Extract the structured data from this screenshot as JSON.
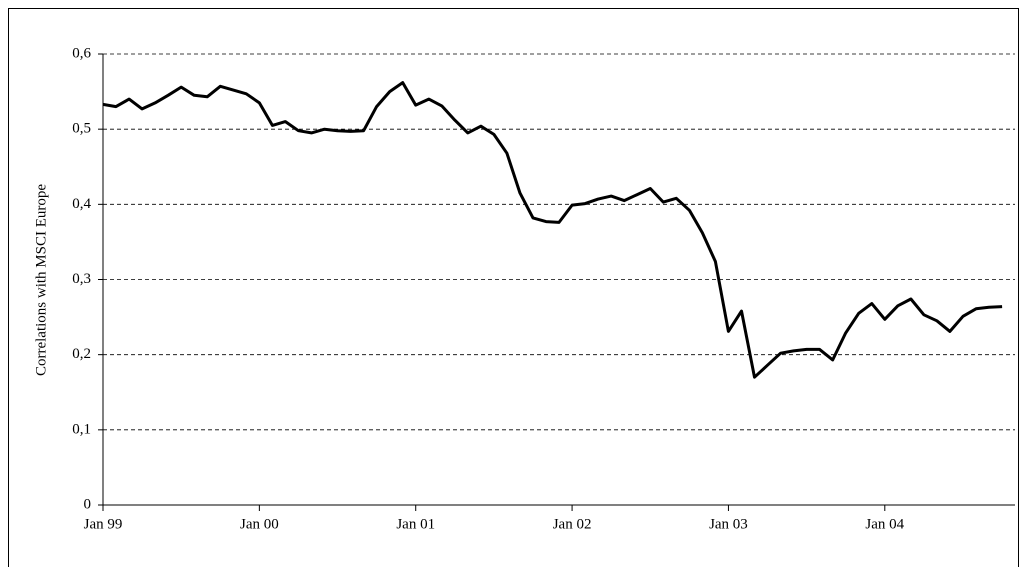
{
  "chart_data": {
    "type": "line",
    "y_label": "Correlations with MSCI Europe",
    "categories": [
      "Jan 99",
      null,
      null,
      null,
      null,
      null,
      null,
      null,
      null,
      null,
      null,
      null,
      "Jan 00",
      null,
      null,
      null,
      null,
      null,
      null,
      null,
      null,
      null,
      null,
      null,
      "Jan 01",
      null,
      null,
      null,
      null,
      null,
      null,
      null,
      null,
      null,
      null,
      null,
      "Jan 02",
      null,
      null,
      null,
      null,
      null,
      null,
      null,
      null,
      null,
      null,
      null,
      "Jan 03",
      null,
      null,
      null,
      null,
      null,
      null,
      null,
      null,
      null,
      null,
      null,
      "Jan 04",
      null,
      null,
      null,
      null,
      null,
      null,
      null,
      null,
      null
    ],
    "series": [
      {
        "name": "Correlations with MSCI Europe",
        "color": "#000000",
        "values": [
          0.533,
          0.53,
          0.54,
          0.527,
          0.535,
          0.545,
          0.556,
          0.545,
          0.543,
          0.557,
          0.552,
          0.547,
          0.535,
          0.505,
          0.51,
          0.498,
          0.495,
          0.5,
          0.498,
          0.497,
          0.498,
          0.53,
          0.55,
          0.562,
          0.532,
          0.54,
          0.531,
          0.512,
          0.495,
          0.504,
          0.493,
          0.468,
          0.415,
          0.382,
          0.377,
          0.376,
          0.399,
          0.401,
          0.407,
          0.411,
          0.405,
          0.413,
          0.421,
          0.403,
          0.408,
          0.392,
          0.362,
          0.324,
          0.231,
          0.258,
          0.17,
          0.186,
          0.202,
          0.205,
          0.207,
          0.207,
          0.193,
          0.229,
          0.255,
          0.268,
          0.247,
          0.265,
          0.274,
          0.253,
          0.245,
          0.231,
          0.251,
          0.261,
          0.263,
          0.264
        ]
      }
    ],
    "ylim": [
      0,
      0.6
    ],
    "yticks": [
      0,
      {
        "value": 0.1,
        "label": "0,1"
      },
      {
        "value": 0.2,
        "label": "0,2"
      },
      {
        "value": 0.3,
        "label": "0,3"
      },
      {
        "value": 0.4,
        "label": "0,4"
      },
      {
        "value": 0.5,
        "label": "0,5"
      },
      {
        "value": 0.6,
        "label": "0,6"
      }
    ],
    "grid": true
  }
}
